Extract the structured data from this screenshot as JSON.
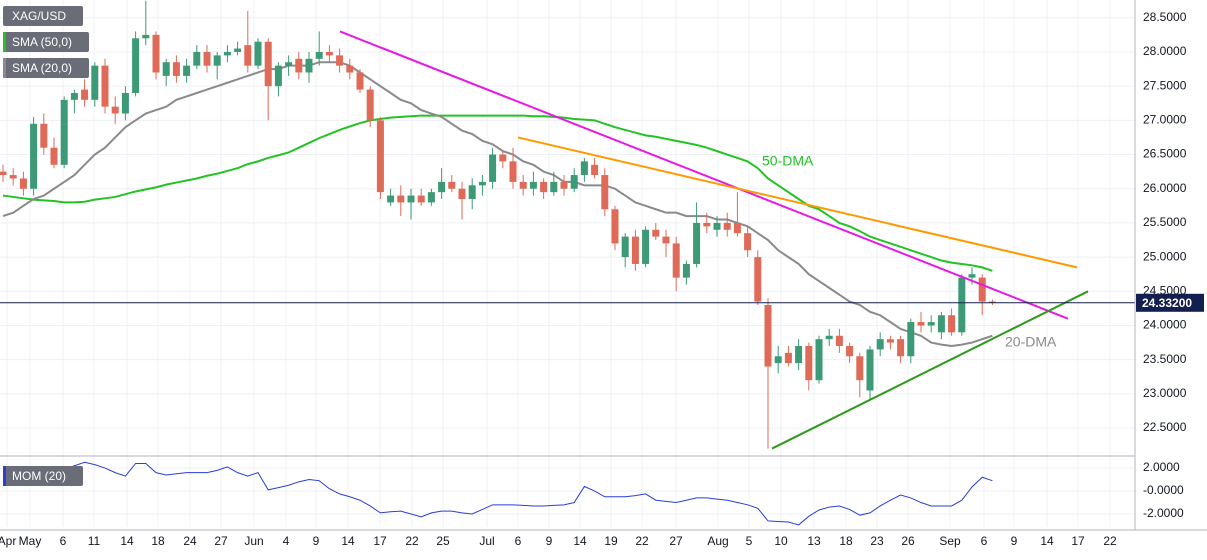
{
  "chart_data": {
    "type": "candlestick",
    "symbol": "XAG/USD",
    "grid": true,
    "up_color": "#3c9a76",
    "down_color": "#df6a57",
    "ylim": [
      22.15,
      28.76
    ],
    "yticks": [
      {
        "value": 22.5,
        "label": "22.5000"
      },
      {
        "value": 23,
        "label": "23.0000"
      },
      {
        "value": 23.5,
        "label": "23.5000"
      },
      {
        "value": 24,
        "label": "24.0000"
      },
      {
        "value": 24.5,
        "label": "24.5000"
      },
      {
        "value": 25,
        "label": "25.0000"
      },
      {
        "value": 25.5,
        "label": "25.5000"
      },
      {
        "value": 26,
        "label": "26.0000"
      },
      {
        "value": 26.5,
        "label": "26.5000"
      },
      {
        "value": 27,
        "label": "27.0000"
      },
      {
        "value": 27.5,
        "label": "27.5000"
      },
      {
        "value": 28,
        "label": "28.0000"
      },
      {
        "value": 28.5,
        "label": "28.5000"
      }
    ],
    "x_labels": [
      "Apr",
      "May",
      "6",
      "11",
      "14",
      "18",
      "24",
      "27",
      "Jun",
      "4",
      "9",
      "14",
      "17",
      "22",
      "25",
      "Jul",
      "6",
      "9",
      "14",
      "19",
      "22",
      "27",
      "Aug",
      "5",
      "10",
      "13",
      "18",
      "23",
      "26",
      "Sep",
      "6",
      "9",
      "14",
      "17",
      "22"
    ],
    "last_price": {
      "value": 24.332,
      "label": "24.33200",
      "color": "#131f4f"
    },
    "candles": [
      [
        26.25,
        26.35,
        26.1,
        26.2
      ],
      [
        26.2,
        26.3,
        26.05,
        26.15
      ],
      [
        26.15,
        26.25,
        25.9,
        26.0
      ],
      [
        26.0,
        27.05,
        25.9,
        26.95
      ],
      [
        26.95,
        27.1,
        26.5,
        26.6
      ],
      [
        26.6,
        26.75,
        26.3,
        26.35
      ],
      [
        26.35,
        27.35,
        26.3,
        27.3
      ],
      [
        27.3,
        27.45,
        27.1,
        27.4
      ],
      [
        27.45,
        27.6,
        27.2,
        27.3
      ],
      [
        27.3,
        27.85,
        27.2,
        27.8
      ],
      [
        27.8,
        27.9,
        27.1,
        27.2
      ],
      [
        27.2,
        27.35,
        26.95,
        27.1
      ],
      [
        27.1,
        27.5,
        27.0,
        27.4
      ],
      [
        27.4,
        28.3,
        27.35,
        28.2
      ],
      [
        28.2,
        28.75,
        28.1,
        28.25
      ],
      [
        28.25,
        28.3,
        27.6,
        27.7
      ],
      [
        27.65,
        27.9,
        27.5,
        27.85
      ],
      [
        27.85,
        27.95,
        27.55,
        27.65
      ],
      [
        27.65,
        27.9,
        27.55,
        27.8
      ],
      [
        27.8,
        28.1,
        27.75,
        28.0
      ],
      [
        28.0,
        28.1,
        27.7,
        27.8
      ],
      [
        27.8,
        28.0,
        27.6,
        27.95
      ],
      [
        27.95,
        28.1,
        27.85,
        28.0
      ],
      [
        28.0,
        28.15,
        27.95,
        28.05
      ],
      [
        28.1,
        28.6,
        27.7,
        27.8
      ],
      [
        27.8,
        28.2,
        27.75,
        28.15
      ],
      [
        28.15,
        28.2,
        27.0,
        27.5
      ],
      [
        27.5,
        27.85,
        27.35,
        27.8
      ],
      [
        27.8,
        27.95,
        27.65,
        27.85
      ],
      [
        27.9,
        28.0,
        27.6,
        27.7
      ],
      [
        27.7,
        28.0,
        27.55,
        27.9
      ],
      [
        27.9,
        28.3,
        27.8,
        28.0
      ],
      [
        28.0,
        28.1,
        27.85,
        27.95
      ],
      [
        27.95,
        28.05,
        27.7,
        27.8
      ],
      [
        27.8,
        27.9,
        27.6,
        27.7
      ],
      [
        27.7,
        27.75,
        27.4,
        27.45
      ],
      [
        27.45,
        27.5,
        26.9,
        27.0
      ],
      [
        27.0,
        27.05,
        25.85,
        25.95
      ],
      [
        25.8,
        26.0,
        25.75,
        25.9
      ],
      [
        25.9,
        26.05,
        25.6,
        25.8
      ],
      [
        25.8,
        26.0,
        25.55,
        25.9
      ],
      [
        25.9,
        26.0,
        25.75,
        25.8
      ],
      [
        25.8,
        26.0,
        25.75,
        25.95
      ],
      [
        25.95,
        26.3,
        25.85,
        26.1
      ],
      [
        26.1,
        26.2,
        25.95,
        26.0
      ],
      [
        26.0,
        26.1,
        25.55,
        25.85
      ],
      [
        25.85,
        26.15,
        25.7,
        26.05
      ],
      [
        26.05,
        26.2,
        25.9,
        26.1
      ],
      [
        26.1,
        26.6,
        26.0,
        26.5
      ],
      [
        26.5,
        26.55,
        26.3,
        26.4
      ],
      [
        26.4,
        26.6,
        26.0,
        26.1
      ],
      [
        26.1,
        26.2,
        25.9,
        26.0
      ],
      [
        26.0,
        26.25,
        25.9,
        26.1
      ],
      [
        26.1,
        26.15,
        25.85,
        25.95
      ],
      [
        25.95,
        26.25,
        25.9,
        26.1
      ],
      [
        26.1,
        26.2,
        25.9,
        26.0
      ],
      [
        26.0,
        26.3,
        25.95,
        26.2
      ],
      [
        26.2,
        26.45,
        26.1,
        26.4
      ],
      [
        26.35,
        26.45,
        26.15,
        26.2
      ],
      [
        26.2,
        26.3,
        25.6,
        25.7
      ],
      [
        25.7,
        25.75,
        25.1,
        25.2
      ],
      [
        25.0,
        25.35,
        24.85,
        25.3
      ],
      [
        25.3,
        25.4,
        24.8,
        24.9
      ],
      [
        24.9,
        25.45,
        24.85,
        25.4
      ],
      [
        25.4,
        25.5,
        25.25,
        25.3
      ],
      [
        25.3,
        25.4,
        25.0,
        25.2
      ],
      [
        25.2,
        25.3,
        24.5,
        24.7
      ],
      [
        24.7,
        24.95,
        24.6,
        24.9
      ],
      [
        24.9,
        25.8,
        24.85,
        25.5
      ],
      [
        25.5,
        25.65,
        25.35,
        25.45
      ],
      [
        25.4,
        25.6,
        25.3,
        25.5
      ],
      [
        25.5,
        25.65,
        25.3,
        25.4
      ],
      [
        25.5,
        25.95,
        25.3,
        25.35
      ],
      [
        25.35,
        25.45,
        25.0,
        25.1
      ],
      [
        25.0,
        25.1,
        24.3,
        24.35
      ],
      [
        24.3,
        24.4,
        22.2,
        23.4
      ],
      [
        23.45,
        23.7,
        23.3,
        23.55
      ],
      [
        23.6,
        23.7,
        23.4,
        23.45
      ],
      [
        23.45,
        23.8,
        23.35,
        23.7
      ],
      [
        23.7,
        23.75,
        23.05,
        23.2
      ],
      [
        23.2,
        23.85,
        23.15,
        23.8
      ],
      [
        23.8,
        23.95,
        23.7,
        23.85
      ],
      [
        23.85,
        23.95,
        23.6,
        23.7
      ],
      [
        23.7,
        23.75,
        23.45,
        23.55
      ],
      [
        23.55,
        23.6,
        22.95,
        23.2
      ],
      [
        23.05,
        23.7,
        22.9,
        23.65
      ],
      [
        23.65,
        23.9,
        23.55,
        23.8
      ],
      [
        23.8,
        23.85,
        23.65,
        23.75
      ],
      [
        23.8,
        23.85,
        23.45,
        23.55
      ],
      [
        23.55,
        24.1,
        23.45,
        24.05
      ],
      [
        24.05,
        24.2,
        23.9,
        24.0
      ],
      [
        24.0,
        24.15,
        23.9,
        24.05
      ],
      [
        23.9,
        24.2,
        23.8,
        24.15
      ],
      [
        24.15,
        24.25,
        23.85,
        23.9
      ],
      [
        23.9,
        24.75,
        23.85,
        24.7
      ],
      [
        24.7,
        24.85,
        24.6,
        24.75
      ],
      [
        24.7,
        24.75,
        24.15,
        24.35
      ],
      [
        24.35,
        24.38,
        24.3,
        24.33
      ]
    ],
    "series": [
      {
        "name": "SMA (50,0)",
        "color": "#22c322",
        "values": [
          25.9,
          25.88,
          25.86,
          25.84,
          25.83,
          25.82,
          25.8,
          25.8,
          25.81,
          25.84,
          25.86,
          25.88,
          25.92,
          25.96,
          25.99,
          26.02,
          26.06,
          26.09,
          26.12,
          26.15,
          26.19,
          26.22,
          26.26,
          26.3,
          26.36,
          26.4,
          26.45,
          26.49,
          26.53,
          26.6,
          26.67,
          26.74,
          26.8,
          26.86,
          26.91,
          26.96,
          27.0,
          27.02,
          27.04,
          27.05,
          27.06,
          27.07,
          27.07,
          27.07,
          27.07,
          27.07,
          27.07,
          27.07,
          27.07,
          27.07,
          27.07,
          27.07,
          27.06,
          27.06,
          27.05,
          27.04,
          27.02,
          27.01,
          27.0,
          26.95,
          26.9,
          26.86,
          26.82,
          26.78,
          26.76,
          26.73,
          26.7,
          26.67,
          26.64,
          26.6,
          26.55,
          26.5,
          26.45,
          26.4,
          26.3,
          26.15,
          26.05,
          25.95,
          25.85,
          25.75,
          25.7,
          25.6,
          25.5,
          25.45,
          25.38,
          25.3,
          25.25,
          25.2,
          25.15,
          25.1,
          25.05,
          25.0,
          24.95,
          24.92,
          24.9,
          24.88,
          24.85,
          24.8
        ]
      },
      {
        "name": "SMA (20,0)",
        "color": "#8a8a8a",
        "values": [
          25.6,
          25.65,
          25.75,
          25.85,
          25.9,
          26.0,
          26.1,
          26.2,
          26.35,
          26.5,
          26.6,
          26.75,
          26.9,
          27.0,
          27.1,
          27.15,
          27.2,
          27.3,
          27.35,
          27.4,
          27.45,
          27.5,
          27.55,
          27.6,
          27.65,
          27.7,
          27.75,
          27.75,
          27.8,
          27.8,
          27.8,
          27.85,
          27.85,
          27.85,
          27.8,
          27.7,
          27.6,
          27.5,
          27.4,
          27.3,
          27.25,
          27.15,
          27.1,
          27.05,
          26.95,
          26.85,
          26.8,
          26.7,
          26.65,
          26.55,
          26.5,
          26.4,
          26.35,
          26.25,
          26.2,
          26.1,
          26.1,
          26.05,
          26.05,
          26.05,
          26.0,
          25.9,
          25.8,
          25.75,
          25.7,
          25.65,
          25.65,
          25.6,
          25.6,
          25.6,
          25.55,
          25.55,
          25.5,
          25.45,
          25.35,
          25.25,
          25.1,
          25.0,
          24.9,
          24.75,
          24.65,
          24.55,
          24.45,
          24.35,
          24.3,
          24.2,
          24.15,
          24.05,
          23.95,
          23.9,
          23.85,
          23.75,
          23.72,
          23.7,
          23.72,
          23.75,
          23.8,
          23.85
        ]
      }
    ],
    "trendlines": [
      {
        "color": "#e619e6",
        "values": [
          28.3,
          24.1
        ]
      },
      {
        "color": "#ff9900",
        "values": [
          26.75,
          24.85
        ]
      },
      {
        "color": "#2e9a1a",
        "values": [
          22.2,
          24.5
        ]
      }
    ],
    "annotations": [
      {
        "text": "50-DMA",
        "color": "#22c322"
      },
      {
        "text": "20-DMA",
        "color": "#8a8a8a"
      }
    ],
    "momentum": {
      "name": "MOM (20)",
      "color": "#2a3ed8",
      "ylim": [
        -3.13,
        2.7
      ],
      "yticks": [
        {
          "value": -2,
          "label": "-2.0000"
        },
        {
          "value": 0,
          "label": "-0.0000"
        },
        {
          "value": 2,
          "label": "2.0000"
        }
      ],
      "values": [
        1.4,
        1.3,
        1.2,
        1.2,
        1.5,
        1.8,
        1.9,
        2.2,
        2.5,
        2.3,
        2.0,
        1.6,
        1.3,
        2.4,
        2.4,
        1.6,
        1.4,
        1.5,
        1.6,
        1.6,
        1.6,
        1.8,
        2.1,
        1.6,
        1.3,
        1.6,
        0.1,
        0.3,
        0.5,
        0.8,
        1.0,
        0.9,
        0.2,
        -0.25,
        -0.5,
        -0.8,
        -1.3,
        -1.9,
        -1.8,
        -1.75,
        -2.0,
        -2.25,
        -1.9,
        -1.75,
        -1.75,
        -1.9,
        -2.0,
        -1.6,
        -1.2,
        -1.2,
        -1.2,
        -1.25,
        -1.3,
        -1.3,
        -1.25,
        -1.2,
        -1.0,
        0.4,
        0.0,
        -0.5,
        -0.5,
        -0.5,
        -0.4,
        -0.25,
        -0.8,
        -0.9,
        -1.0,
        -0.8,
        -0.6,
        -0.6,
        -0.7,
        -0.8,
        -1.0,
        -1.2,
        -1.5,
        -2.6,
        -2.65,
        -2.7,
        -2.95,
        -2.2,
        -1.65,
        -1.4,
        -1.3,
        -1.6,
        -2.1,
        -1.9,
        -1.3,
        -0.8,
        -0.35,
        -0.6,
        -1.0,
        -1.3,
        -1.3,
        -1.3,
        -0.8,
        0.35,
        1.2,
        0.9
      ]
    }
  }
}
